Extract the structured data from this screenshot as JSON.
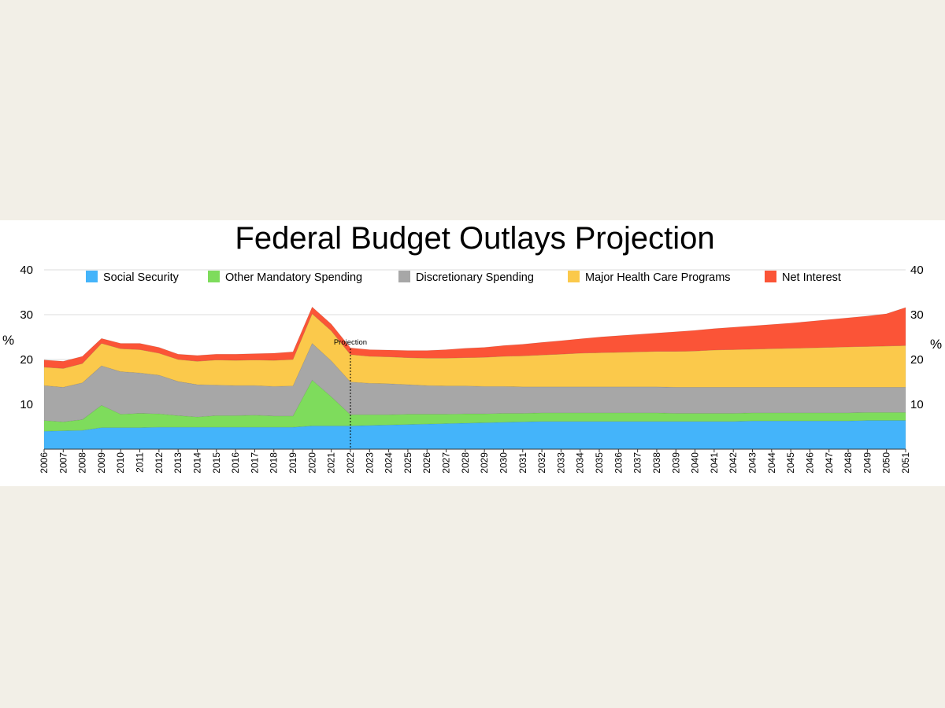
{
  "chart_data": {
    "type": "area",
    "stacked": true,
    "title": "Federal Budget Outlays Projection",
    "ylabel_left": "%",
    "ylabel_right": "%",
    "ylim": [
      0,
      40
    ],
    "yticks": [
      10,
      20,
      30,
      40
    ],
    "grid": true,
    "legend_position": "top",
    "projection_marker": {
      "x": "2022",
      "label": "Projection"
    },
    "x": [
      "2006",
      "2007",
      "2008",
      "2009",
      "2010",
      "2011",
      "2012",
      "2013",
      "2014",
      "2015",
      "2016",
      "2017",
      "2018",
      "2019",
      "2020",
      "2021",
      "2022",
      "2023",
      "2024",
      "2025",
      "2026",
      "2027",
      "2028",
      "2029",
      "2030",
      "2031",
      "2032",
      "2033",
      "2034",
      "2035",
      "2036",
      "2037",
      "2038",
      "2039",
      "2040",
      "2041",
      "2042",
      "2043",
      "2044",
      "2045",
      "2046",
      "2047",
      "2048",
      "2049",
      "2050",
      "2051"
    ],
    "series": [
      {
        "name": "Social Security",
        "color": "#44b4fa",
        "values": [
          4.0,
          4.1,
          4.2,
          4.8,
          4.8,
          4.8,
          4.9,
          4.9,
          4.9,
          4.9,
          4.9,
          4.9,
          4.9,
          4.9,
          5.2,
          5.2,
          5.2,
          5.3,
          5.4,
          5.5,
          5.6,
          5.7,
          5.8,
          5.9,
          6.0,
          6.1,
          6.2,
          6.2,
          6.2,
          6.2,
          6.2,
          6.2,
          6.2,
          6.2,
          6.2,
          6.2,
          6.2,
          6.3,
          6.3,
          6.3,
          6.3,
          6.3,
          6.3,
          6.4,
          6.4,
          6.4
        ]
      },
      {
        "name": "Other Mandatory Spending",
        "color": "#7edc5c",
        "values": [
          2.4,
          2.0,
          2.4,
          5.0,
          3.0,
          3.2,
          3.0,
          2.6,
          2.3,
          2.6,
          2.6,
          2.7,
          2.5,
          2.5,
          10.2,
          6.5,
          2.5,
          2.4,
          2.3,
          2.3,
          2.2,
          2.1,
          2.1,
          2.0,
          2.0,
          1.9,
          1.9,
          1.9,
          1.9,
          1.9,
          1.9,
          1.9,
          1.9,
          1.8,
          1.8,
          1.8,
          1.8,
          1.8,
          1.8,
          1.8,
          1.8,
          1.8,
          1.8,
          1.8,
          1.8,
          1.8
        ]
      },
      {
        "name": "Discretionary Spending",
        "color": "#a7a7a7",
        "values": [
          7.8,
          7.7,
          8.2,
          8.8,
          9.5,
          9.0,
          8.6,
          7.6,
          7.2,
          6.8,
          6.7,
          6.6,
          6.6,
          6.7,
          8.2,
          8.0,
          7.3,
          7.0,
          6.9,
          6.6,
          6.4,
          6.3,
          6.2,
          6.1,
          6.0,
          5.9,
          5.8,
          5.8,
          5.8,
          5.8,
          5.8,
          5.8,
          5.8,
          5.8,
          5.8,
          5.8,
          5.8,
          5.7,
          5.7,
          5.7,
          5.7,
          5.7,
          5.7,
          5.6,
          5.6,
          5.6
        ]
      },
      {
        "name": "Major Health Care Programs",
        "color": "#fbc94b",
        "values": [
          4.1,
          4.2,
          4.3,
          5.0,
          5.1,
          5.2,
          4.9,
          4.9,
          5.2,
          5.6,
          5.6,
          5.7,
          5.8,
          5.9,
          6.6,
          6.7,
          6.1,
          6.0,
          6.0,
          6.0,
          6.1,
          6.2,
          6.3,
          6.5,
          6.7,
          6.9,
          7.1,
          7.3,
          7.5,
          7.6,
          7.7,
          7.8,
          7.9,
          8.0,
          8.1,
          8.3,
          8.4,
          8.5,
          8.6,
          8.7,
          8.8,
          8.9,
          9.0,
          9.1,
          9.2,
          9.3
        ]
      },
      {
        "name": "Net Interest",
        "color": "#fb5437",
        "values": [
          1.6,
          1.6,
          1.6,
          1.1,
          1.2,
          1.4,
          1.3,
          1.2,
          1.3,
          1.3,
          1.4,
          1.4,
          1.6,
          1.7,
          1.5,
          1.5,
          1.5,
          1.5,
          1.5,
          1.6,
          1.7,
          1.9,
          2.1,
          2.2,
          2.4,
          2.6,
          2.8,
          3.0,
          3.2,
          3.5,
          3.7,
          3.9,
          4.1,
          4.4,
          4.6,
          4.8,
          5.0,
          5.2,
          5.4,
          5.6,
          5.9,
          6.2,
          6.5,
          6.8,
          7.2,
          8.5
        ]
      }
    ]
  }
}
